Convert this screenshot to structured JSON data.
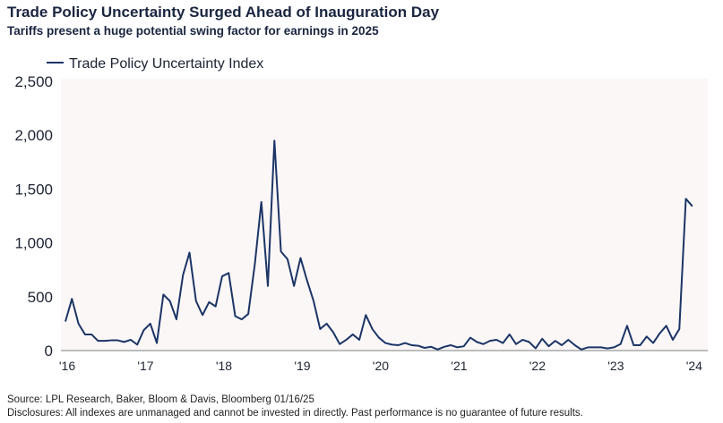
{
  "header": {
    "title": "Trade Policy Uncertainty Surged Ahead of Inauguration Day",
    "subtitle": "Tariffs present a huge potential swing factor for earnings in 2025"
  },
  "footer": {
    "source": "Source: LPL Research, Baker, Bloom & Davis, Bloomberg 01/16/25",
    "disclosure": "Disclosures: All indexes are unmanaged and cannot be invested in directly. Past performance is no guarantee of future results."
  },
  "colors": {
    "line": "#1b3566",
    "plot_background": "#fcf7f7"
  },
  "chart_data": {
    "type": "line",
    "title": "Trade Policy Uncertainty Surged Ahead of Inauguration Day",
    "legend": {
      "placement": "top-left",
      "entries": [
        "Trade Policy Uncertainty Index"
      ]
    },
    "ylim": [
      0,
      2500
    ],
    "yticks": [
      0,
      500,
      1000,
      1500,
      2000,
      2500
    ],
    "ytick_labels": [
      "0",
      "500",
      "1,000",
      "1,500",
      "2,000",
      "2,500"
    ],
    "xtick_labels": [
      "'16",
      "'17",
      "'18",
      "'19",
      "'20",
      "'21",
      "'22",
      "'23",
      "'24"
    ],
    "grid": false,
    "series": [
      {
        "name": "Trade Policy Uncertainty Index",
        "x_start": "2016-01",
        "frequency": "monthly",
        "values": [
          270,
          480,
          250,
          150,
          150,
          90,
          90,
          95,
          95,
          80,
          100,
          55,
          190,
          250,
          70,
          520,
          460,
          290,
          700,
          910,
          460,
          330,
          450,
          410,
          690,
          720,
          320,
          290,
          340,
          800,
          1380,
          600,
          1950,
          920,
          850,
          600,
          860,
          650,
          460,
          200,
          250,
          170,
          60,
          100,
          150,
          100,
          330,
          200,
          120,
          70,
          55,
          50,
          70,
          50,
          45,
          25,
          35,
          10,
          35,
          50,
          30,
          40,
          120,
          80,
          60,
          90,
          100,
          70,
          150,
          60,
          100,
          80,
          20,
          110,
          40,
          90,
          50,
          100,
          50,
          10,
          30,
          30,
          30,
          20,
          30,
          60,
          230,
          50,
          50,
          130,
          70,
          160,
          230,
          100,
          200,
          1410,
          1340
        ]
      }
    ]
  }
}
